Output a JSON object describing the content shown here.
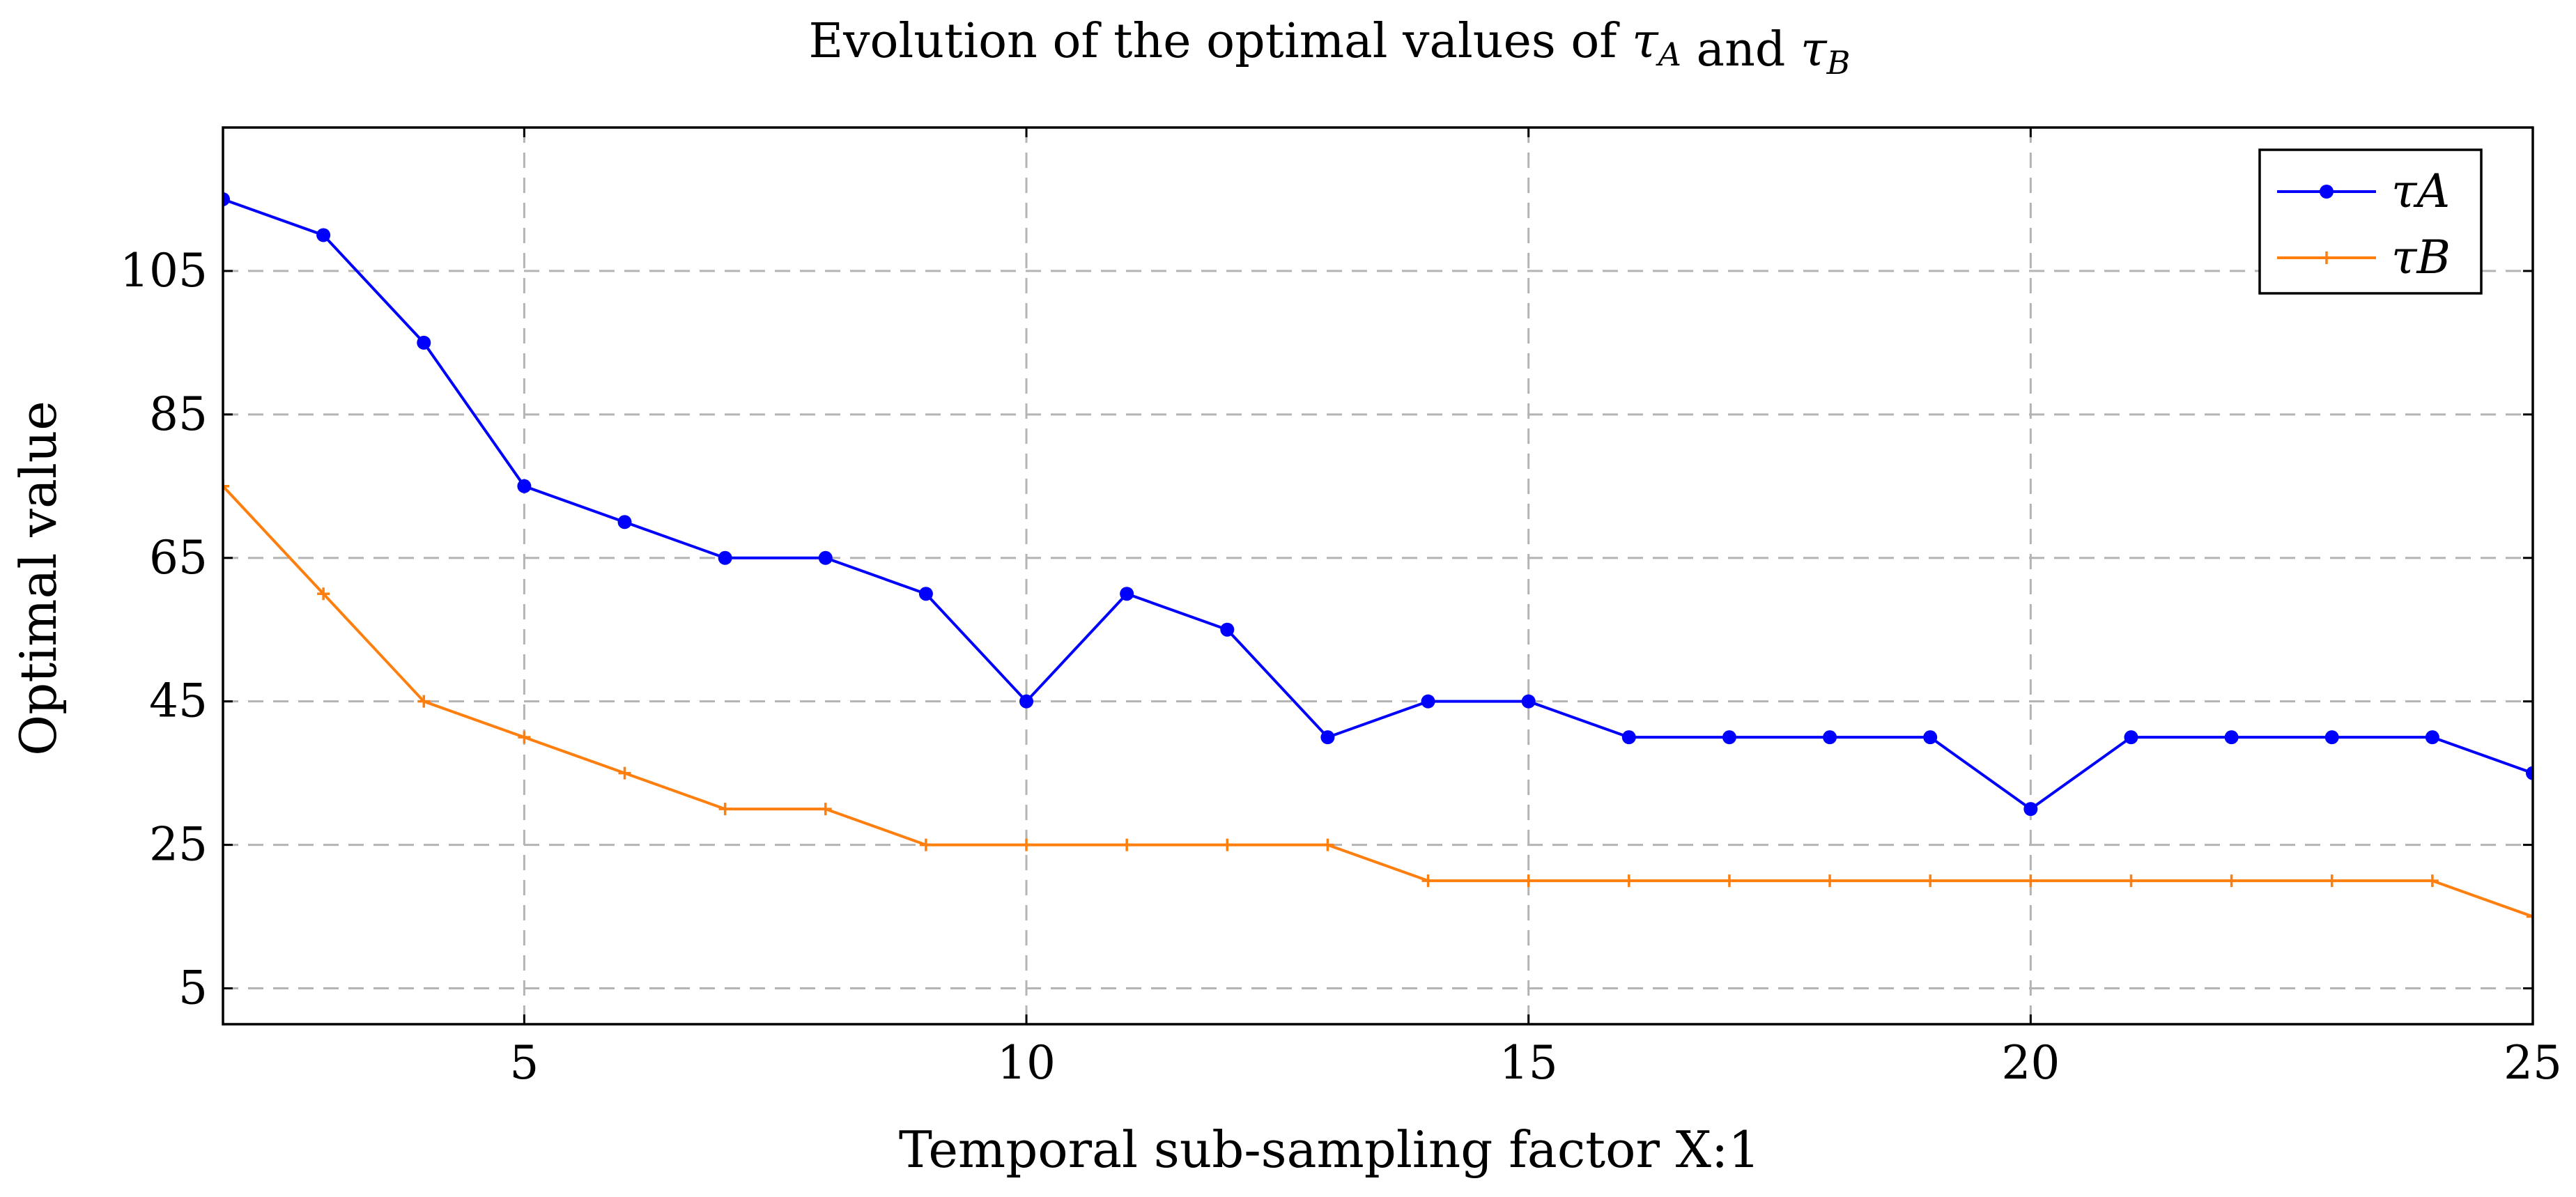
{
  "chart_data": {
    "type": "line",
    "title": "Evolution of the optimal values of τA and τB",
    "xlabel": "Temporal sub-sampling factor X:1",
    "ylabel": "Optimal value",
    "xlim": [
      2,
      25
    ],
    "ylim": [
      0,
      125
    ],
    "x_ticks": [
      5,
      10,
      15,
      20,
      25
    ],
    "y_ticks": [
      5,
      25,
      45,
      65,
      85,
      105
    ],
    "grid": "horizontal-dashed",
    "legend_position": "top-right",
    "x": [
      2,
      3,
      4,
      5,
      6,
      7,
      8,
      9,
      10,
      11,
      12,
      13,
      14,
      15,
      16,
      17,
      18,
      19,
      20,
      21,
      22,
      23,
      24,
      25
    ],
    "series": [
      {
        "name": "τA",
        "color": "#0000ff",
        "marker": "circle",
        "values": [
          115,
          110,
          95,
          75,
          70,
          65,
          65,
          60,
          45,
          60,
          55,
          40,
          45,
          45,
          40,
          40,
          40,
          40,
          30,
          40,
          40,
          40,
          40,
          35
        ]
      },
      {
        "name": "τB",
        "color": "#ff7f0e",
        "marker": "plus",
        "values": [
          75,
          60,
          45,
          40,
          35,
          30,
          30,
          25,
          25,
          25,
          25,
          25,
          20,
          20,
          20,
          20,
          20,
          20,
          20,
          20,
          20,
          20,
          20,
          15
        ]
      }
    ]
  }
}
